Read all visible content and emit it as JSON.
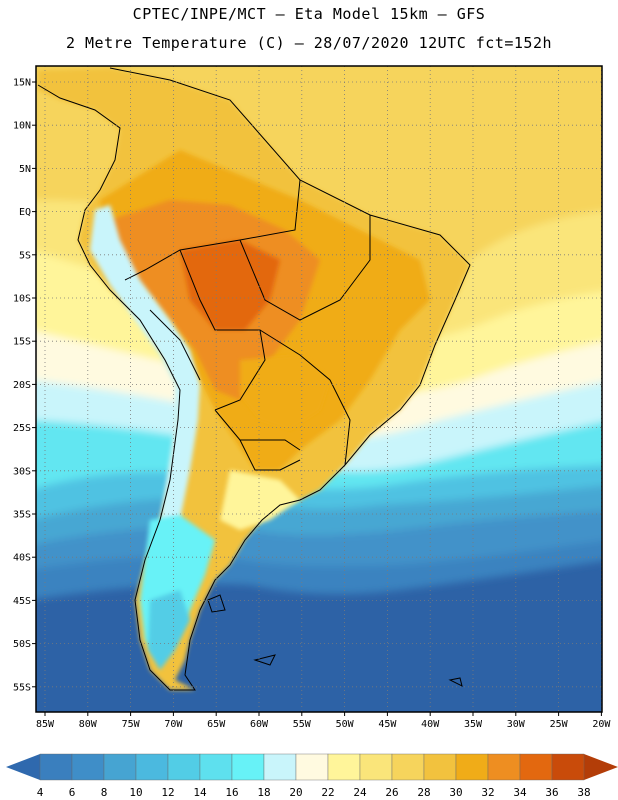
{
  "header": {
    "line1": "CPTEC/INPE/MCT –  Eta Model 15km – GFS",
    "line2": "2 Metre Temperature (C) – 28/07/2020 12UTC fct=152h"
  },
  "map": {
    "lat_labels": [
      "15N",
      "10N",
      "5N",
      "EQ",
      "5S",
      "10S",
      "15S",
      "20S",
      "25S",
      "30S",
      "35S",
      "40S",
      "45S",
      "50S",
      "55S"
    ],
    "lon_labels": [
      "85W",
      "80W",
      "75W",
      "70W",
      "65W",
      "60W",
      "55W",
      "50W",
      "45W",
      "40W",
      "35W",
      "30W",
      "25W",
      "20W"
    ]
  },
  "colorbar": {
    "colors": [
      "#3a7fbe",
      "#3f8ec8",
      "#46a4d2",
      "#4bb9df",
      "#52cde6",
      "#5ee0ee",
      "#67f2f7",
      "#c9f5fb",
      "#fffae0",
      "#fff59a",
      "#fae57a",
      "#f6d45c",
      "#f2c23e",
      "#f0ac18",
      "#ee8e21",
      "#e3680f",
      "#c94b0a"
    ],
    "arrow_left_color": "#2f69ae",
    "arrow_right_color": "#b33d08",
    "labels": [
      "4",
      "6",
      "8",
      "10",
      "12",
      "14",
      "16",
      "18",
      "20",
      "22",
      "24",
      "26",
      "28",
      "30",
      "32",
      "34",
      "36",
      "38"
    ]
  }
}
